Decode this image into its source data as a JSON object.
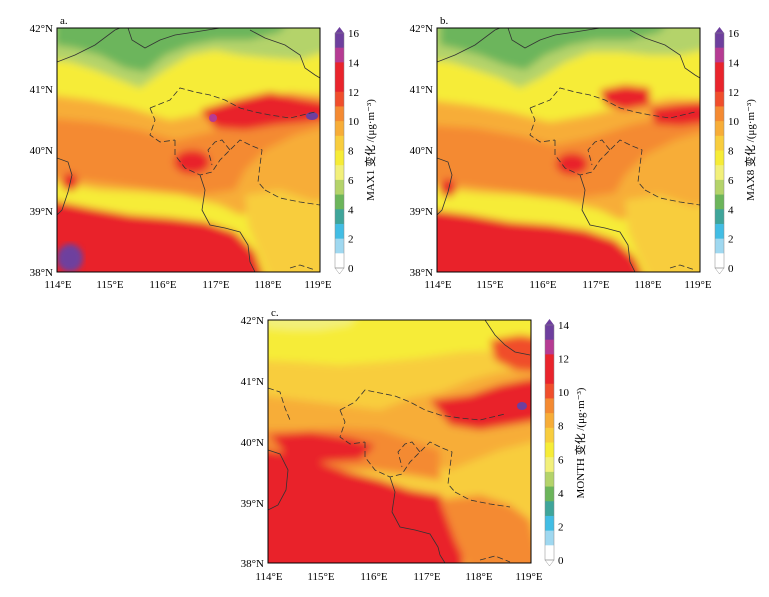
{
  "colors": {
    "purple": "#6e3f9e",
    "magenta": "#b63b93",
    "red": "#e9242c",
    "red_orange": "#f04e2c",
    "orange": "#f48a32",
    "light_orange": "#f7ad38",
    "yellow_orange": "#f8cd3e",
    "yellow": "#f6ec37",
    "light_yellow": "#f2f07a",
    "yellow_green": "#b4d36a",
    "green": "#6cb55b",
    "teal": "#3fa59a",
    "cyan": "#42bde4",
    "light_cyan": "#9fd8f0",
    "white": "#ffffff",
    "boundary": "#333333"
  },
  "panels": [
    {
      "label": "a.",
      "colorbar_title": "MAX1 变化 /(μg·m⁻³)",
      "colorbar_ticks": [
        "16",
        "14",
        "12",
        "10",
        "8",
        "6",
        "4",
        "2",
        "0"
      ],
      "colorbar_max": 16
    },
    {
      "label": "b.",
      "colorbar_title": "MAX8 变化 /(μg·m⁻³)",
      "colorbar_ticks": [
        "16",
        "14",
        "12",
        "10",
        "8",
        "6",
        "4",
        "2",
        "0"
      ],
      "colorbar_max": 16
    },
    {
      "label": "c.",
      "colorbar_title": "MONTH 变化 /(μg·m⁻³)",
      "colorbar_ticks": [
        "14",
        "12",
        "10",
        "8",
        "6",
        "4",
        "2",
        "0"
      ],
      "colorbar_max": 14
    }
  ],
  "axes": {
    "lat_labels": [
      "42°N",
      "41°N",
      "40°N",
      "39°N",
      "38°N"
    ],
    "lon_labels": [
      "114°E",
      "115°E",
      "116°E",
      "117°E",
      "118°E",
      "119°E"
    ]
  }
}
